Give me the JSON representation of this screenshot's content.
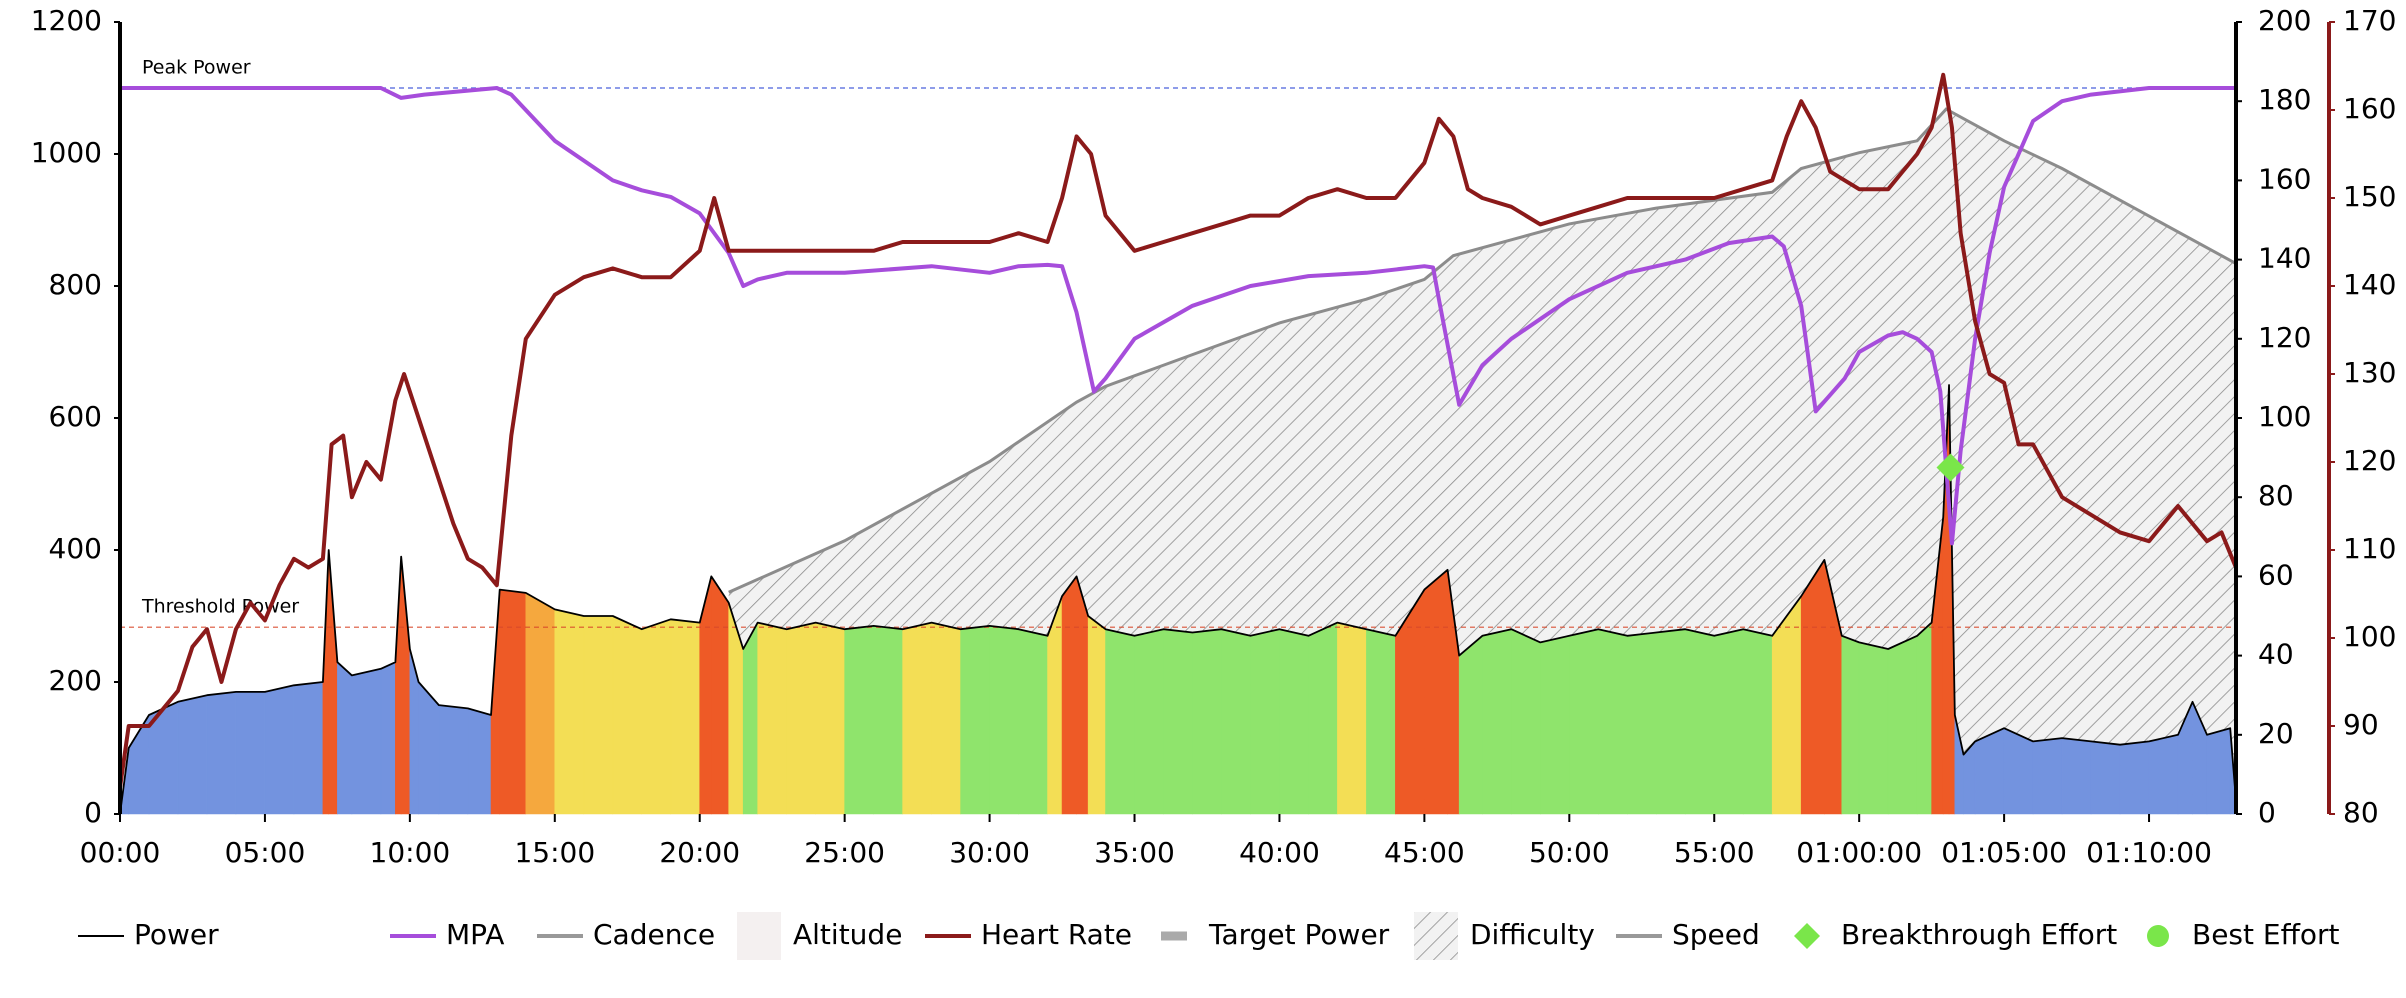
{
  "chart_data": {
    "type": "line",
    "xlim": [
      0,
      73
    ],
    "xticks": [
      {
        "value": 0,
        "label": "00:00"
      },
      {
        "value": 5,
        "label": "05:00"
      },
      {
        "value": 10,
        "label": "10:00"
      },
      {
        "value": 15,
        "label": "15:00"
      },
      {
        "value": 20,
        "label": "20:00"
      },
      {
        "value": 25,
        "label": "25:00"
      },
      {
        "value": 30,
        "label": "30:00"
      },
      {
        "value": 35,
        "label": "35:00"
      },
      {
        "value": 40,
        "label": "40:00"
      },
      {
        "value": 45,
        "label": "45:00"
      },
      {
        "value": 50,
        "label": "50:00"
      },
      {
        "value": 55,
        "label": "55:00"
      },
      {
        "value": 60,
        "label": "01:00:00"
      },
      {
        "value": 65,
        "label": "01:05:00"
      },
      {
        "value": 70,
        "label": "01:10:00"
      }
    ],
    "ylim": [
      0,
      1200
    ],
    "yticks": [
      0,
      200,
      400,
      600,
      800,
      1000,
      1200
    ],
    "y2lim": [
      0,
      200
    ],
    "y2ticks": [
      0,
      20,
      40,
      60,
      80,
      100,
      120,
      140,
      160,
      180,
      200
    ],
    "y3lim": [
      80,
      170
    ],
    "y3ticks": [
      80,
      90,
      100,
      110,
      120,
      130,
      140,
      150,
      160,
      170
    ],
    "annotations": [
      {
        "text": "Peak Power",
        "value": 1100,
        "color": "#2a45d6"
      },
      {
        "text": "Threshold Power",
        "value": 283,
        "color": "#d9482a"
      }
    ],
    "series": [
      {
        "name": "Power",
        "color": "#000000",
        "style": "power",
        "visible": true,
        "x": [
          0,
          0.3,
          1,
          2,
          3,
          4,
          5,
          6,
          7,
          7.2,
          7.5,
          8,
          9,
          9.5,
          9.7,
          10,
          10.3,
          11,
          12,
          12.8,
          13.1,
          14,
          15,
          16,
          17,
          18,
          19,
          20,
          20.4,
          21,
          21.5,
          22,
          23,
          24,
          25,
          26,
          27,
          28,
          29,
          30,
          31,
          32,
          32.5,
          33,
          33.4,
          34,
          35,
          36,
          37,
          38,
          39,
          40,
          41,
          42,
          43,
          44,
          45,
          45.8,
          46.2,
          47,
          48,
          49,
          50,
          51,
          52,
          53,
          54,
          55,
          56,
          57,
          58,
          58.8,
          59.4,
          60,
          61,
          62,
          62.5,
          62.9,
          63.1,
          63.3,
          63.6,
          64,
          65,
          66,
          67,
          68,
          69,
          70,
          71,
          71.5,
          72,
          72.8,
          73
        ],
        "values": [
          0,
          100,
          150,
          170,
          180,
          185,
          185,
          195,
          200,
          400,
          230,
          210,
          220,
          230,
          390,
          250,
          200,
          165,
          160,
          150,
          340,
          335,
          310,
          300,
          300,
          280,
          295,
          290,
          360,
          320,
          250,
          290,
          280,
          290,
          280,
          285,
          280,
          290,
          280,
          285,
          280,
          270,
          330,
          360,
          300,
          280,
          270,
          280,
          275,
          280,
          270,
          280,
          270,
          290,
          280,
          270,
          340,
          370,
          240,
          270,
          280,
          260,
          270,
          280,
          270,
          275,
          280,
          270,
          280,
          270,
          330,
          385,
          270,
          260,
          250,
          270,
          290,
          450,
          650,
          150,
          90,
          110,
          130,
          110,
          115,
          110,
          105,
          110,
          120,
          170,
          120,
          130,
          20
        ]
      },
      {
        "name": "MPA",
        "color": "#a64ddb",
        "style": "line",
        "visible": true,
        "x": [
          0,
          9,
          9.7,
          10.5,
          13,
          13.5,
          15,
          17,
          18,
          19,
          20,
          21,
          21.5,
          22,
          23,
          25,
          28,
          30,
          31,
          32,
          32.5,
          33,
          33.6,
          34,
          35,
          37,
          39,
          41,
          43,
          45,
          45.3,
          45.5,
          46.2,
          47,
          48,
          50,
          52,
          54,
          55.5,
          57,
          57.4,
          58,
          58.5,
          59.5,
          60,
          61,
          61.5,
          62,
          62.5,
          62.8,
          63.2,
          63.5,
          64,
          64.5,
          65,
          66,
          67,
          68,
          70,
          73
        ],
        "values": [
          1100,
          1100,
          1085,
          1090,
          1100,
          1090,
          1020,
          960,
          945,
          935,
          910,
          850,
          800,
          810,
          820,
          820,
          830,
          820,
          830,
          832,
          830,
          760,
          640,
          660,
          720,
          770,
          800,
          815,
          820,
          830,
          828,
          780,
          620,
          680,
          720,
          780,
          820,
          840,
          865,
          875,
          860,
          770,
          610,
          660,
          700,
          725,
          730,
          720,
          700,
          640,
          410,
          550,
          720,
          850,
          950,
          1050,
          1080,
          1090,
          1100,
          1100
        ]
      },
      {
        "name": "Cadence",
        "color": "#9a9a9a",
        "style": "line",
        "visible": false
      },
      {
        "name": "Altitude",
        "color": "#eeeeee",
        "style": "area",
        "visible": false
      },
      {
        "name": "Heart Rate",
        "color": "#8b1a1a",
        "style": "line",
        "visible": true,
        "axis": "y3",
        "x": [
          0,
          0.3,
          1,
          2,
          2.5,
          3,
          3.5,
          4,
          4.5,
          5,
          5.5,
          6,
          6.5,
          7,
          7.3,
          7.7,
          8,
          8.5,
          9,
          9.5,
          9.8,
          10.3,
          11,
          11.5,
          12,
          12.5,
          13,
          13.5,
          14,
          15,
          16,
          17,
          18,
          19,
          20,
          20.5,
          21,
          22,
          23,
          24,
          25,
          26,
          27,
          28,
          29,
          30,
          31,
          32,
          32.5,
          33,
          33.5,
          34,
          35,
          36,
          37,
          38,
          39,
          40,
          41,
          42,
          43,
          44,
          45,
          45.5,
          46,
          46.5,
          47,
          48,
          49,
          50,
          51,
          52,
          53,
          54,
          55,
          56,
          57,
          57.5,
          58,
          58.5,
          59,
          60,
          61,
          62,
          62.5,
          62.9,
          63.2,
          63.5,
          64,
          64.5,
          65,
          65.5,
          66,
          67,
          68,
          69,
          70,
          71,
          72,
          72.5,
          73
        ],
        "values": [
          83,
          90,
          90,
          94,
          99,
          101,
          95,
          101,
          104,
          102,
          106,
          109,
          108,
          109,
          122,
          123,
          116,
          120,
          118,
          127,
          130,
          125,
          118,
          113,
          109,
          108,
          106,
          123,
          134,
          139,
          141,
          142,
          141,
          141,
          144,
          150,
          144,
          144,
          144,
          144,
          144,
          144,
          145,
          145,
          145,
          145,
          146,
          145,
          150,
          157,
          155,
          148,
          144,
          145,
          146,
          147,
          148,
          148,
          150,
          151,
          150,
          150,
          154,
          159,
          157,
          151,
          150,
          149,
          147,
          148,
          149,
          150,
          150,
          150,
          150,
          151,
          152,
          157,
          161,
          158,
          153,
          151,
          151,
          155,
          158,
          164,
          158,
          146,
          136,
          130,
          129,
          122,
          122,
          116,
          114,
          112,
          111,
          115,
          111,
          112,
          108
        ]
      },
      {
        "name": "Target Power",
        "color": "#aaaaaa",
        "style": "bar",
        "visible": false
      },
      {
        "name": "Difficulty",
        "color": "#8c8c8c",
        "style": "hatch",
        "visible": true,
        "axis": "y2",
        "x": [
          21,
          25,
          30,
          33,
          34,
          37,
          40,
          43,
          45,
          46,
          48,
          50,
          53,
          57,
          58,
          60,
          62,
          63,
          65,
          67,
          70,
          73
        ],
        "values": [
          56,
          69,
          89,
          104,
          108,
          116,
          124,
          130,
          135,
          141,
          145,
          149,
          153,
          157,
          163,
          167,
          170,
          178,
          170,
          163,
          151,
          139
        ]
      },
      {
        "name": "Speed",
        "color": "#9a9a9a",
        "style": "line",
        "visible": false
      },
      {
        "name": "Breakthrough Effort",
        "color": "#7ae64a",
        "style": "diamond",
        "visible": true,
        "x": [
          63.15
        ],
        "values": [
          525
        ]
      },
      {
        "name": "Best Effort",
        "color": "#7ae64a",
        "style": "circle",
        "visible": false
      }
    ]
  }
}
